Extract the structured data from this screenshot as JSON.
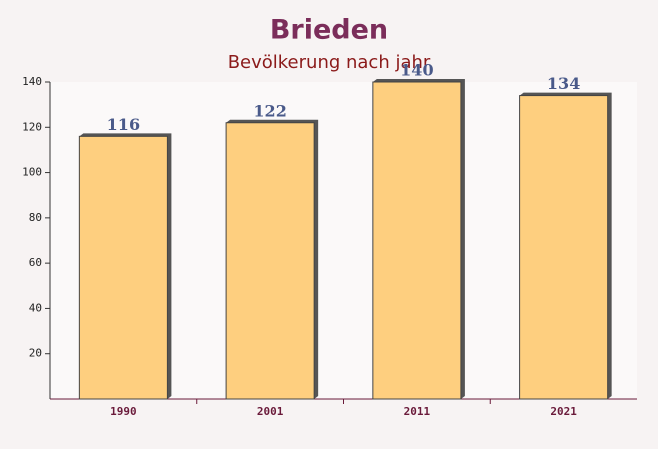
{
  "chart_data": {
    "type": "bar",
    "title": "Brieden",
    "subtitle": "Bevölkerung nach jahr",
    "categories": [
      "1990",
      "2001",
      "2011",
      "2021"
    ],
    "values": [
      116,
      122,
      140,
      134
    ],
    "color": "#fec86a",
    "ylim": [
      0,
      140
    ],
    "yticks": [
      20,
      40,
      60,
      80,
      100,
      120,
      140
    ]
  }
}
